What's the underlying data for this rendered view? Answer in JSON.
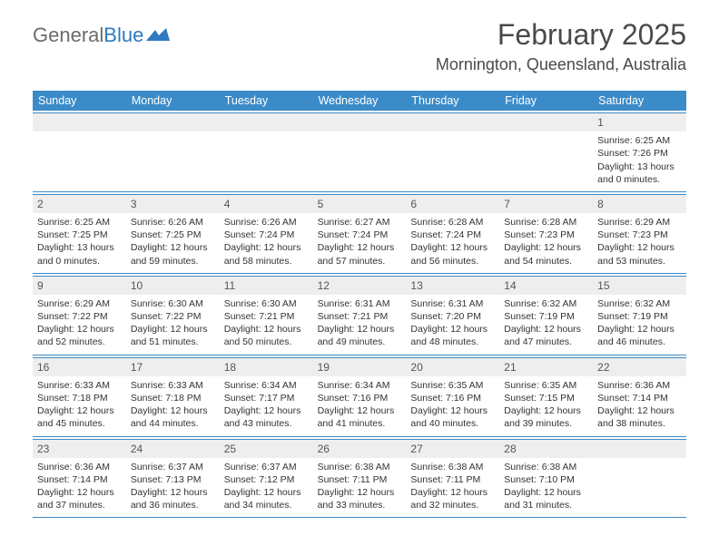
{
  "logo": {
    "text1": "General",
    "text2": "Blue"
  },
  "title": "February 2025",
  "location": "Mornington, Queensland, Australia",
  "colors": {
    "header_bg": "#3b8bc8",
    "header_text": "#ffffff",
    "daynum_bg": "#eeeeee",
    "border": "#3b8bc8",
    "logo_gray": "#6b6b6b",
    "logo_blue": "#2f7ac0"
  },
  "dayNames": [
    "Sunday",
    "Monday",
    "Tuesday",
    "Wednesday",
    "Thursday",
    "Friday",
    "Saturday"
  ],
  "weeks": [
    [
      null,
      null,
      null,
      null,
      null,
      null,
      {
        "n": "1",
        "sr": "Sunrise: 6:25 AM",
        "ss": "Sunset: 7:26 PM",
        "dl": "Daylight: 13 hours and 0 minutes."
      }
    ],
    [
      {
        "n": "2",
        "sr": "Sunrise: 6:25 AM",
        "ss": "Sunset: 7:25 PM",
        "dl": "Daylight: 13 hours and 0 minutes."
      },
      {
        "n": "3",
        "sr": "Sunrise: 6:26 AM",
        "ss": "Sunset: 7:25 PM",
        "dl": "Daylight: 12 hours and 59 minutes."
      },
      {
        "n": "4",
        "sr": "Sunrise: 6:26 AM",
        "ss": "Sunset: 7:24 PM",
        "dl": "Daylight: 12 hours and 58 minutes."
      },
      {
        "n": "5",
        "sr": "Sunrise: 6:27 AM",
        "ss": "Sunset: 7:24 PM",
        "dl": "Daylight: 12 hours and 57 minutes."
      },
      {
        "n": "6",
        "sr": "Sunrise: 6:28 AM",
        "ss": "Sunset: 7:24 PM",
        "dl": "Daylight: 12 hours and 56 minutes."
      },
      {
        "n": "7",
        "sr": "Sunrise: 6:28 AM",
        "ss": "Sunset: 7:23 PM",
        "dl": "Daylight: 12 hours and 54 minutes."
      },
      {
        "n": "8",
        "sr": "Sunrise: 6:29 AM",
        "ss": "Sunset: 7:23 PM",
        "dl": "Daylight: 12 hours and 53 minutes."
      }
    ],
    [
      {
        "n": "9",
        "sr": "Sunrise: 6:29 AM",
        "ss": "Sunset: 7:22 PM",
        "dl": "Daylight: 12 hours and 52 minutes."
      },
      {
        "n": "10",
        "sr": "Sunrise: 6:30 AM",
        "ss": "Sunset: 7:22 PM",
        "dl": "Daylight: 12 hours and 51 minutes."
      },
      {
        "n": "11",
        "sr": "Sunrise: 6:30 AM",
        "ss": "Sunset: 7:21 PM",
        "dl": "Daylight: 12 hours and 50 minutes."
      },
      {
        "n": "12",
        "sr": "Sunrise: 6:31 AM",
        "ss": "Sunset: 7:21 PM",
        "dl": "Daylight: 12 hours and 49 minutes."
      },
      {
        "n": "13",
        "sr": "Sunrise: 6:31 AM",
        "ss": "Sunset: 7:20 PM",
        "dl": "Daylight: 12 hours and 48 minutes."
      },
      {
        "n": "14",
        "sr": "Sunrise: 6:32 AM",
        "ss": "Sunset: 7:19 PM",
        "dl": "Daylight: 12 hours and 47 minutes."
      },
      {
        "n": "15",
        "sr": "Sunrise: 6:32 AM",
        "ss": "Sunset: 7:19 PM",
        "dl": "Daylight: 12 hours and 46 minutes."
      }
    ],
    [
      {
        "n": "16",
        "sr": "Sunrise: 6:33 AM",
        "ss": "Sunset: 7:18 PM",
        "dl": "Daylight: 12 hours and 45 minutes."
      },
      {
        "n": "17",
        "sr": "Sunrise: 6:33 AM",
        "ss": "Sunset: 7:18 PM",
        "dl": "Daylight: 12 hours and 44 minutes."
      },
      {
        "n": "18",
        "sr": "Sunrise: 6:34 AM",
        "ss": "Sunset: 7:17 PM",
        "dl": "Daylight: 12 hours and 43 minutes."
      },
      {
        "n": "19",
        "sr": "Sunrise: 6:34 AM",
        "ss": "Sunset: 7:16 PM",
        "dl": "Daylight: 12 hours and 41 minutes."
      },
      {
        "n": "20",
        "sr": "Sunrise: 6:35 AM",
        "ss": "Sunset: 7:16 PM",
        "dl": "Daylight: 12 hours and 40 minutes."
      },
      {
        "n": "21",
        "sr": "Sunrise: 6:35 AM",
        "ss": "Sunset: 7:15 PM",
        "dl": "Daylight: 12 hours and 39 minutes."
      },
      {
        "n": "22",
        "sr": "Sunrise: 6:36 AM",
        "ss": "Sunset: 7:14 PM",
        "dl": "Daylight: 12 hours and 38 minutes."
      }
    ],
    [
      {
        "n": "23",
        "sr": "Sunrise: 6:36 AM",
        "ss": "Sunset: 7:14 PM",
        "dl": "Daylight: 12 hours and 37 minutes."
      },
      {
        "n": "24",
        "sr": "Sunrise: 6:37 AM",
        "ss": "Sunset: 7:13 PM",
        "dl": "Daylight: 12 hours and 36 minutes."
      },
      {
        "n": "25",
        "sr": "Sunrise: 6:37 AM",
        "ss": "Sunset: 7:12 PM",
        "dl": "Daylight: 12 hours and 34 minutes."
      },
      {
        "n": "26",
        "sr": "Sunrise: 6:38 AM",
        "ss": "Sunset: 7:11 PM",
        "dl": "Daylight: 12 hours and 33 minutes."
      },
      {
        "n": "27",
        "sr": "Sunrise: 6:38 AM",
        "ss": "Sunset: 7:11 PM",
        "dl": "Daylight: 12 hours and 32 minutes."
      },
      {
        "n": "28",
        "sr": "Sunrise: 6:38 AM",
        "ss": "Sunset: 7:10 PM",
        "dl": "Daylight: 12 hours and 31 minutes."
      },
      null
    ]
  ]
}
